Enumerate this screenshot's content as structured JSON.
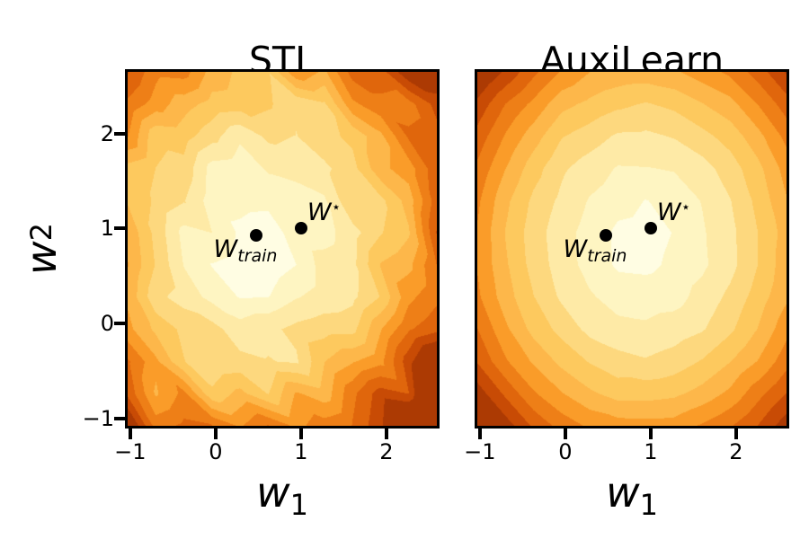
{
  "chart_data": {
    "type": "contour",
    "x_range": [
      -1.03,
      2.59
    ],
    "y_range": [
      -1.08,
      2.65
    ],
    "x_ticks": [
      -1,
      0,
      1,
      2
    ],
    "y_ticks": [
      2,
      1,
      0,
      -1
    ],
    "x_tick_labels": [
      "−1",
      "0",
      "1",
      "2"
    ],
    "y_tick_labels": [
      "2",
      "1",
      "0",
      "−1"
    ],
    "xlabel": {
      "base": "w",
      "sub": "1"
    },
    "ylabel": {
      "base": "w",
      "sub": "2"
    },
    "levels": [
      0.15,
      0.6,
      1.2,
      1.8,
      2.4,
      3.0,
      3.6,
      4.2,
      4.8,
      5.4
    ],
    "colors": [
      "#FFFDE3",
      "#FEF5C2",
      "#FEEAA6",
      "#FDD87E",
      "#FDC95E",
      "#FDB74A",
      "#FA9C29",
      "#EE7F17",
      "#E0660C",
      "#C84B05",
      "#AC3A03"
    ],
    "panels": [
      {
        "title": "STL",
        "landscape": {
          "minimum": [
            0.5,
            0.92
          ],
          "anisotropy": [
            1.0,
            0.85
          ],
          "noise_base": 0.1,
          "noise": 0.4,
          "seed": 3,
          "grid": 12
        }
      },
      {
        "title": "AuxiLearn",
        "landscape": {
          "minimum": [
            0.9,
            0.85
          ],
          "anisotropy": [
            0.95,
            0.85
          ],
          "noise_base": 0.02,
          "noise": 0.05,
          "seed": 11,
          "grid": 12
        }
      }
    ],
    "annotations": [
      {
        "id": "w-star",
        "base": "W",
        "sup": "⋆",
        "x": 1.0,
        "y": 1.0
      },
      {
        "id": "w-train",
        "base": "W",
        "sub": "train",
        "x": 0.48,
        "y": 0.93
      }
    ]
  }
}
